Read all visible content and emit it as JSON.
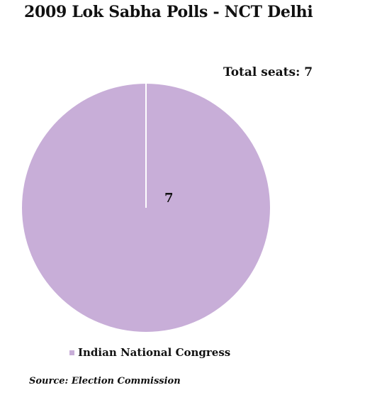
{
  "chart_data": {
    "type": "pie",
    "title": "2009 Lok Sabha Polls - NCT Delhi",
    "annotation": "Total seats: 7",
    "slices": [
      {
        "name": "Indian National Congress",
        "value": 7,
        "label": "7",
        "color": "#c8aed8"
      }
    ],
    "legend_position": "bottom",
    "source": "Source: Election Commission"
  },
  "colors": {
    "slice_edge": "#ffffff",
    "text": "#111111"
  }
}
